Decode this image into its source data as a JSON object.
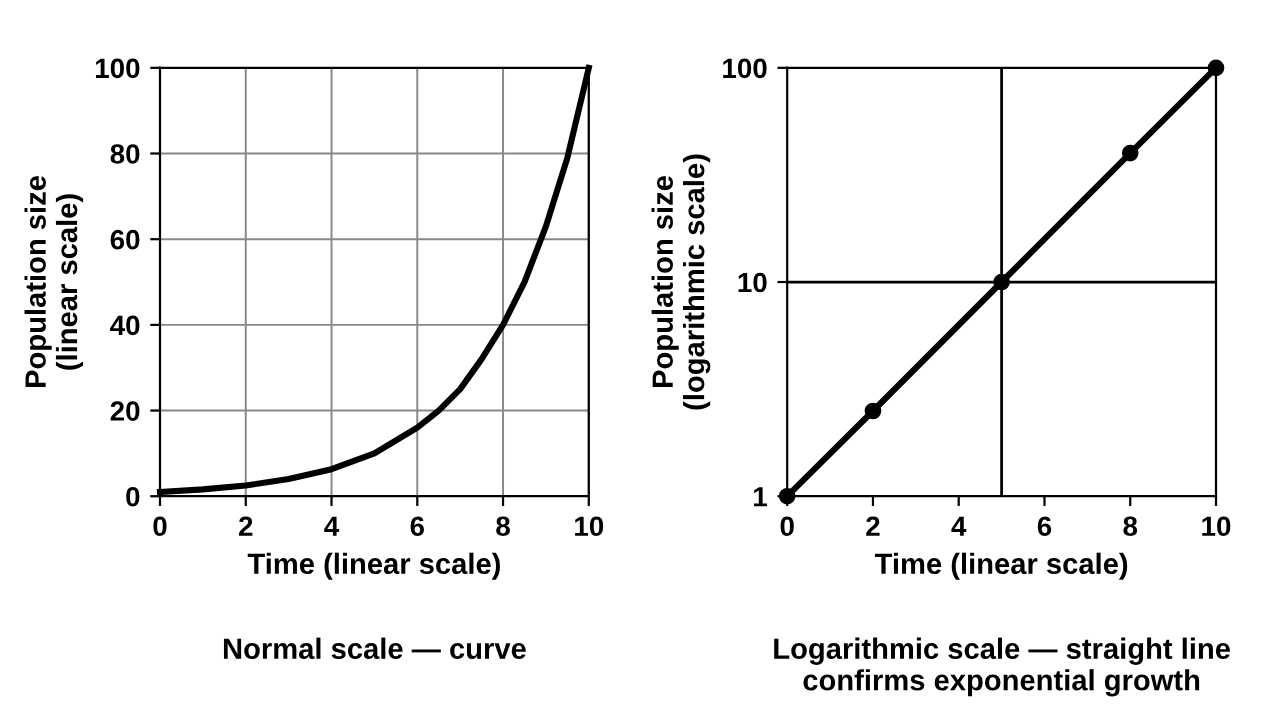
{
  "chart_data": [
    {
      "type": "line",
      "xlabel": "Time (linear scale)",
      "ylabel": "Population size\n(linear scale)",
      "annotations": [
        "Normal scale — curve"
      ],
      "x": [
        0,
        1,
        2,
        3,
        4,
        5,
        6,
        6.5,
        7,
        7.5,
        8,
        8.5,
        9,
        9.5,
        10
      ],
      "series": [
        {
          "color": "#000000",
          "values": [
            1,
            1.6,
            2.5,
            4,
            6.3,
            10,
            16,
            20,
            25,
            32,
            40,
            50,
            63,
            79,
            100
          ]
        }
      ],
      "xlim": [
        0,
        10
      ],
      "ylim": [
        0,
        100
      ],
      "xticks": [
        0,
        2,
        4,
        6,
        8,
        10
      ],
      "yticks": [
        0,
        20,
        40,
        60,
        80,
        100
      ],
      "grid": true
    },
    {
      "type": "line",
      "xlabel": "Time (linear scale)",
      "ylabel": "Population size\n(logarithmic scale)",
      "annotations": [
        "Logarithmic scale — straight line\nconfirms exponential growth"
      ],
      "x": [
        0,
        2,
        5,
        8,
        10
      ],
      "series": [
        {
          "color": "#000000",
          "values": [
            1,
            2.5,
            10,
            40,
            100
          ]
        }
      ],
      "marker": "circle",
      "log": "y",
      "xlim": [
        0,
        10
      ],
      "ylim": [
        1,
        100
      ],
      "xticks": [
        0,
        2,
        4,
        6,
        8,
        10
      ],
      "yticks": [
        1,
        10,
        100
      ],
      "ref_lines": [
        {
          "axis": "x",
          "value": 5,
          "color": "#000000"
        },
        {
          "axis": "y",
          "value": 10,
          "color": "#000000"
        }
      ]
    }
  ]
}
